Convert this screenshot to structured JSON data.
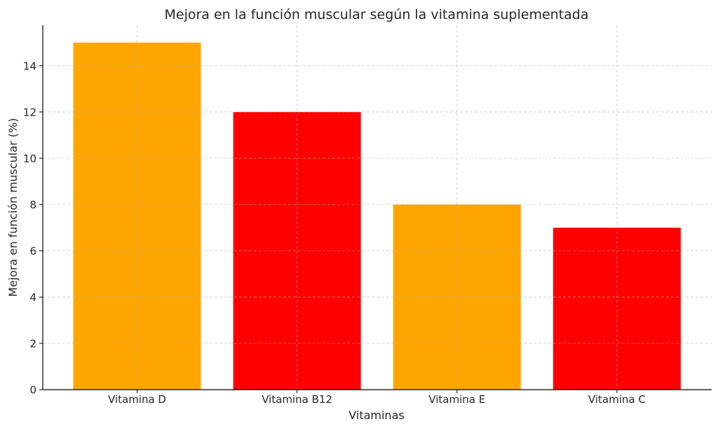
{
  "chart_data": {
    "type": "bar",
    "title": "Mejora en la función muscular según la vitamina suplementada",
    "xlabel": "Vitaminas",
    "ylabel": "Mejora en función muscular (%)",
    "categories": [
      "Vitamina D",
      "Vitamina B12",
      "Vitamina E",
      "Vitamina C"
    ],
    "values": [
      15,
      12,
      8,
      7
    ],
    "bar_colors": [
      "#FFA500",
      "#FF0000",
      "#FFA500",
      "#FF0000"
    ],
    "ylim": [
      0,
      15.75
    ],
    "yticks": [
      0,
      2,
      4,
      6,
      8,
      10,
      12,
      14
    ],
    "grid": true,
    "legend": "none"
  }
}
